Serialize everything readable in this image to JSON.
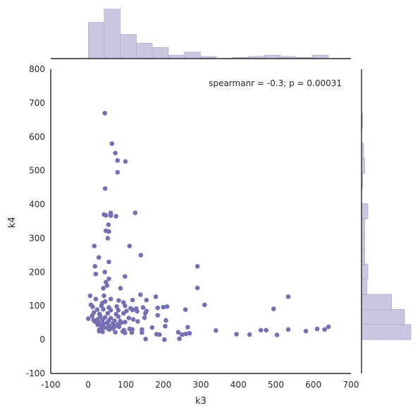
{
  "chart_data": {
    "type": "scatter",
    "title": "",
    "xlabel": "k3",
    "ylabel": "k4",
    "xlim": [
      -100,
      700
    ],
    "ylim": [
      -100,
      800
    ],
    "xticks": [
      -100,
      0,
      100,
      200,
      300,
      400,
      500,
      600,
      700
    ],
    "yticks": [
      -100,
      0,
      100,
      200,
      300,
      400,
      500,
      600,
      700,
      800
    ],
    "grid": false,
    "annotation": "spearmanr = -0.3; p = 0.00031",
    "color": "#7570b3",
    "marginal_color": "#cbc6e0",
    "points": [
      [
        44,
        670
      ],
      [
        63,
        580
      ],
      [
        72,
        552
      ],
      [
        78,
        530
      ],
      [
        99,
        527
      ],
      [
        78,
        495
      ],
      [
        45,
        447
      ],
      [
        60,
        375
      ],
      [
        125,
        375
      ],
      [
        42,
        370
      ],
      [
        47,
        368
      ],
      [
        60,
        367
      ],
      [
        74,
        365
      ],
      [
        54,
        340
      ],
      [
        47,
        322
      ],
      [
        55,
        320
      ],
      [
        52,
        300
      ],
      [
        110,
        277
      ],
      [
        16,
        277
      ],
      [
        140,
        250
      ],
      [
        28,
        243
      ],
      [
        55,
        230
      ],
      [
        18,
        217
      ],
      [
        20,
        194
      ],
      [
        44,
        200
      ],
      [
        291,
        217
      ],
      [
        98,
        187
      ],
      [
        55,
        180
      ],
      [
        47,
        170
      ],
      [
        50,
        160
      ],
      [
        40,
        152
      ],
      [
        86,
        152
      ],
      [
        291,
        153
      ],
      [
        533,
        127
      ],
      [
        5,
        130
      ],
      [
        42,
        130
      ],
      [
        139,
        133
      ],
      [
        180,
        127
      ],
      [
        20,
        120
      ],
      [
        60,
        120
      ],
      [
        118,
        117
      ],
      [
        155,
        117
      ],
      [
        81,
        116
      ],
      [
        37,
        108
      ],
      [
        45,
        113
      ],
      [
        94,
        110
      ],
      [
        98,
        100
      ],
      [
        310,
        103
      ],
      [
        7,
        103
      ],
      [
        12,
        97
      ],
      [
        35,
        100
      ],
      [
        55,
        95
      ],
      [
        76,
        98
      ],
      [
        113,
        93
      ],
      [
        128,
        92
      ],
      [
        146,
        95
      ],
      [
        185,
        94
      ],
      [
        200,
        96
      ],
      [
        210,
        98
      ],
      [
        259,
        89
      ],
      [
        494,
        91
      ],
      [
        24,
        89
      ],
      [
        40,
        90
      ],
      [
        60,
        87
      ],
      [
        80,
        87
      ],
      [
        102,
        85
      ],
      [
        118,
        88
      ],
      [
        130,
        84
      ],
      [
        155,
        85
      ],
      [
        15,
        80
      ],
      [
        30,
        76
      ],
      [
        52,
        78
      ],
      [
        74,
        75
      ],
      [
        94,
        78
      ],
      [
        152,
        78
      ],
      [
        10,
        70
      ],
      [
        32,
        68
      ],
      [
        45,
        66
      ],
      [
        60,
        64
      ],
      [
        80,
        68
      ],
      [
        108,
        64
      ],
      [
        150,
        65
      ],
      [
        185,
        72
      ],
      [
        0,
        62
      ],
      [
        14,
        58
      ],
      [
        25,
        60
      ],
      [
        38,
        58
      ],
      [
        55,
        56
      ],
      [
        70,
        56
      ],
      [
        85,
        55
      ],
      [
        98,
        52
      ],
      [
        120,
        60
      ],
      [
        132,
        54
      ],
      [
        207,
        57
      ],
      [
        18,
        53
      ],
      [
        28,
        50
      ],
      [
        40,
        47
      ],
      [
        50,
        50
      ],
      [
        65,
        47
      ],
      [
        78,
        45
      ],
      [
        88,
        50
      ],
      [
        25,
        44
      ],
      [
        35,
        42
      ],
      [
        55,
        40
      ],
      [
        70,
        38
      ],
      [
        82,
        38
      ],
      [
        42,
        36
      ],
      [
        50,
        35
      ],
      [
        60,
        34
      ],
      [
        65,
        33
      ],
      [
        205,
        40
      ],
      [
        265,
        37
      ],
      [
        30,
        30
      ],
      [
        35,
        28
      ],
      [
        56,
        30
      ],
      [
        95,
        28
      ],
      [
        110,
        32
      ],
      [
        117,
        30
      ],
      [
        143,
        30
      ],
      [
        170,
        36
      ],
      [
        29,
        25
      ],
      [
        38,
        23
      ],
      [
        72,
        22
      ],
      [
        92,
        24
      ],
      [
        98,
        20
      ],
      [
        116,
        21
      ],
      [
        143,
        21
      ],
      [
        182,
        16
      ],
      [
        190,
        15
      ],
      [
        240,
        22
      ],
      [
        243,
        3
      ],
      [
        250,
        15
      ],
      [
        260,
        17
      ],
      [
        270,
        19
      ],
      [
        340,
        27
      ],
      [
        395,
        16
      ],
      [
        430,
        15
      ],
      [
        460,
        28
      ],
      [
        474,
        28
      ],
      [
        503,
        14
      ],
      [
        533,
        30
      ],
      [
        580,
        25
      ],
      [
        610,
        32
      ],
      [
        630,
        30
      ],
      [
        640,
        38
      ],
      [
        153,
        2
      ],
      [
        203,
        0
      ]
    ]
  }
}
